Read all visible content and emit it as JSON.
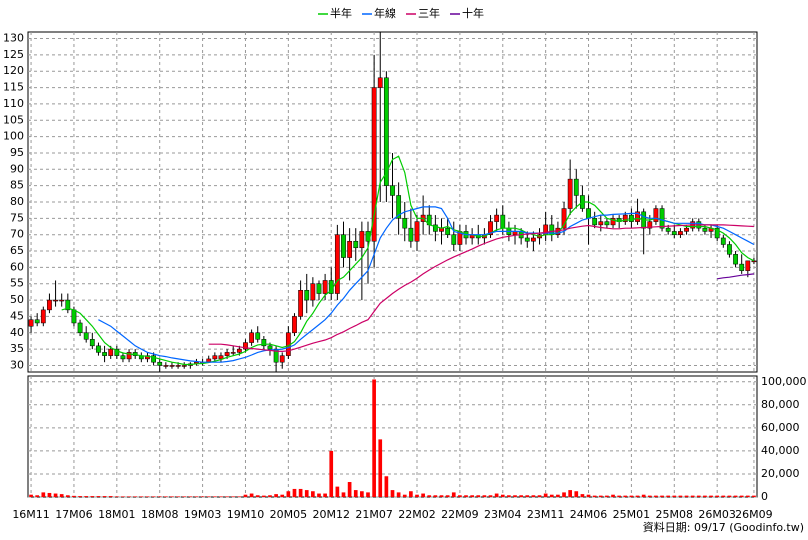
{
  "chart_data": {
    "type": "candlestick",
    "footer": "資料日期: 09/17 (Goodinfo.tw)",
    "categories": [
      "16M11",
      null,
      null,
      null,
      null,
      null,
      null,
      "17M06",
      null,
      null,
      null,
      null,
      null,
      null,
      "18M01",
      null,
      null,
      null,
      null,
      null,
      null,
      "18M08",
      null,
      null,
      null,
      null,
      null,
      null,
      "19M03",
      null,
      null,
      null,
      null,
      null,
      null,
      "19M10",
      null,
      null,
      null,
      null,
      null,
      null,
      "20M05",
      null,
      null,
      null,
      null,
      null,
      null,
      "20M12",
      null,
      null,
      null,
      null,
      null,
      null,
      "21M07",
      null,
      null,
      null,
      null,
      null,
      null,
      "22M02",
      null,
      null,
      null,
      null,
      null,
      null,
      "22M09",
      null,
      null,
      null,
      null,
      null,
      null,
      "23M04",
      null,
      null,
      null,
      null,
      null,
      null,
      "23M11",
      null,
      null,
      null,
      null,
      null,
      null,
      "24M06",
      null,
      null,
      null,
      null,
      null,
      null,
      "25M01",
      null,
      null,
      null,
      null,
      null,
      null,
      "25M08",
      null,
      null,
      null,
      null,
      null,
      null,
      "26M03",
      null,
      null,
      null,
      null,
      null,
      "26M09"
    ],
    "up_color": "#ff0000",
    "down_color": "#00cc00",
    "candles": {
      "open": [
        42,
        44,
        43,
        47,
        50,
        50,
        50,
        47,
        43,
        40,
        38,
        36,
        34,
        33,
        35,
        33,
        32,
        34,
        33,
        32,
        33,
        31,
        30,
        30,
        30,
        30,
        30,
        30.5,
        31,
        31,
        32,
        32,
        33,
        34,
        34,
        35,
        37,
        40,
        38,
        36,
        35,
        31,
        33,
        40,
        45,
        53,
        50,
        55,
        52,
        56,
        52,
        70,
        63,
        68,
        66,
        71,
        68,
        115,
        118,
        85,
        82,
        75,
        72,
        68,
        74,
        76,
        73,
        71,
        72,
        70,
        67,
        71,
        69,
        70,
        69,
        70,
        74,
        76,
        72,
        70,
        71,
        69,
        68,
        69,
        70,
        73,
        70,
        72,
        78,
        87,
        82,
        78,
        75,
        73,
        74,
        73,
        75,
        74,
        76,
        74,
        77,
        72,
        74,
        78,
        72,
        71,
        70,
        71,
        72,
        74,
        72,
        71,
        72,
        69,
        67,
        64,
        61,
        59,
        62
      ],
      "high": [
        45,
        46,
        48,
        52,
        56,
        52,
        52,
        48,
        44,
        42,
        40,
        37,
        36,
        36,
        36,
        34,
        35,
        35,
        34,
        34,
        34,
        32,
        31,
        31,
        31,
        31,
        31,
        32,
        32,
        33,
        34,
        34,
        35,
        36,
        36,
        38,
        41,
        42,
        39,
        37,
        36,
        34,
        42,
        46,
        56,
        58,
        57,
        56,
        58,
        60,
        73,
        74,
        72,
        72,
        74,
        74,
        125,
        132,
        120,
        95,
        86,
        80,
        78,
        76,
        82,
        79,
        76,
        75,
        75,
        74,
        73,
        73,
        72,
        73,
        72,
        76,
        78,
        79,
        74,
        73,
        72,
        71,
        71,
        72,
        77,
        76,
        74,
        80,
        93,
        90,
        85,
        82,
        77,
        76,
        75,
        76,
        76,
        77,
        78,
        81,
        78,
        76,
        79,
        79,
        73,
        73,
        72,
        73,
        75,
        75,
        73,
        73,
        73,
        70,
        68,
        65,
        64,
        62,
        63
      ],
      "low": [
        40,
        42,
        42,
        46,
        48,
        48,
        46,
        42,
        39,
        37,
        35,
        33,
        31,
        32,
        32,
        31,
        31,
        32,
        31,
        31,
        30,
        28,
        29,
        29,
        29,
        29,
        29,
        30,
        30,
        31,
        31,
        31,
        32,
        33,
        33,
        34,
        36,
        37,
        35,
        33,
        28,
        29,
        32,
        39,
        44,
        46,
        48,
        50,
        50,
        50,
        50,
        60,
        56,
        62,
        50,
        55,
        60,
        80,
        80,
        75,
        70,
        68,
        66,
        65,
        70,
        70,
        68,
        67,
        69,
        65,
        65,
        67,
        67,
        67,
        67,
        69,
        71,
        70,
        68,
        67,
        67,
        66,
        65,
        67,
        68,
        68,
        69,
        70,
        76,
        78,
        77,
        67,
        72,
        71,
        72,
        72,
        72,
        73,
        72,
        73,
        64,
        70,
        73,
        71,
        70,
        69,
        69,
        70,
        71,
        71,
        70,
        69,
        68,
        66,
        63,
        60,
        58,
        57,
        61
      ],
      "close": [
        44,
        43,
        47,
        50,
        50,
        50,
        47,
        43,
        40,
        38,
        36,
        34,
        33,
        35,
        33,
        32,
        34,
        33,
        32,
        33,
        31,
        30,
        30,
        30,
        30,
        30,
        30.5,
        31,
        31,
        32,
        33,
        33,
        34,
        34,
        35,
        37,
        40,
        38,
        36,
        35,
        31,
        33,
        40,
        45,
        53,
        50,
        55,
        52,
        56,
        52,
        70,
        63,
        68,
        66,
        71,
        68,
        115,
        118,
        85,
        82,
        75,
        72,
        68,
        74,
        76,
        73,
        71,
        72,
        70,
        67,
        71,
        69,
        70,
        69,
        70,
        74,
        76,
        72,
        70,
        71,
        69,
        68,
        69,
        70,
        73,
        70,
        72,
        78,
        87,
        82,
        78,
        75,
        73,
        74,
        73,
        75,
        74,
        76,
        74,
        77,
        72,
        74,
        78,
        72,
        71,
        70,
        71,
        72,
        74,
        72,
        71,
        72,
        69,
        67,
        64,
        61,
        59,
        62,
        62
      ]
    },
    "series": [
      {
        "name": "半年",
        "color": "#00cc00",
        "values": [
          null,
          null,
          null,
          null,
          null,
          47,
          47.5,
          47,
          46,
          44,
          42,
          39.5,
          37,
          35.5,
          34.5,
          33.8,
          33.5,
          33.3,
          33,
          32.8,
          32.5,
          32,
          31.5,
          31,
          30.7,
          30.3,
          30.3,
          30.5,
          30.6,
          30.9,
          31.3,
          31.8,
          32.5,
          33,
          33.5,
          34.3,
          35.5,
          36.3,
          36.5,
          36.5,
          36,
          35.5,
          36,
          37.3,
          40,
          43.5,
          46,
          49,
          51.5,
          53,
          56,
          57,
          59,
          61,
          63,
          66,
          76,
          86,
          89,
          93,
          94,
          89,
          79,
          75,
          75,
          73,
          72.5,
          72,
          72.5,
          71.5,
          71,
          70,
          70,
          69.5,
          69.5,
          70.5,
          71.5,
          72,
          72,
          72,
          71.5,
          70.5,
          70,
          69.5,
          70,
          70,
          70.5,
          73,
          76.5,
          78.5,
          80,
          80,
          79,
          77,
          75,
          74.5,
          74,
          74.5,
          74.5,
          75,
          74.5,
          74.5,
          75,
          74.5,
          74,
          73.5,
          73,
          72.5,
          72.5,
          72.5,
          72.5,
          72,
          71.5,
          70.5,
          69,
          67,
          64.5,
          63,
          62
        ]
      },
      {
        "name": "年線",
        "color": "#0066ff",
        "values": [
          null,
          null,
          null,
          null,
          null,
          null,
          null,
          null,
          null,
          null,
          null,
          44,
          43,
          42,
          40.5,
          39,
          37.5,
          36,
          35,
          34,
          33.5,
          33,
          32.7,
          32.3,
          32,
          31.7,
          31.4,
          31.2,
          31,
          31,
          31,
          31,
          31.2,
          31.5,
          32,
          32.5,
          33.2,
          34,
          34.5,
          34.8,
          34.8,
          35,
          35.5,
          36.3,
          38,
          39.5,
          41,
          42.5,
          44,
          46,
          48.5,
          50.5,
          53,
          55,
          57,
          59,
          64,
          69,
          72,
          74.5,
          76,
          77,
          77.5,
          78,
          78.5,
          78.5,
          78.5,
          78,
          75,
          71,
          70.5,
          70,
          70,
          70,
          70,
          70.5,
          71,
          71,
          71,
          71,
          71,
          70.5,
          70.5,
          70.5,
          70.5,
          70.5,
          70.5,
          71,
          72.5,
          73.5,
          74.5,
          75,
          75.5,
          76,
          76,
          76.2,
          76.3,
          76.4,
          76.5,
          76.5,
          75.5,
          75,
          75,
          74.5,
          74,
          73.5,
          73.5,
          73.5,
          73.5,
          73.5,
          73,
          73,
          72.5,
          72,
          71,
          70,
          69,
          68,
          67
        ]
      },
      {
        "name": "三年",
        "color": "#cc0066",
        "values": [
          null,
          null,
          null,
          null,
          null,
          null,
          null,
          null,
          null,
          null,
          null,
          null,
          null,
          null,
          null,
          null,
          null,
          null,
          null,
          null,
          null,
          null,
          null,
          null,
          null,
          null,
          null,
          null,
          null,
          36.5,
          36.5,
          36.5,
          36.3,
          36,
          35.7,
          35.4,
          35.2,
          35,
          34.8,
          34.6,
          34.4,
          34.3,
          34.5,
          35,
          35.6,
          36.2,
          36.8,
          37.3,
          37.8,
          38.5,
          39.5,
          40.3,
          41.3,
          42.2,
          43.2,
          44,
          46.5,
          49,
          50.5,
          52,
          53.3,
          54.5,
          55.5,
          56.7,
          58,
          59.2,
          60.3,
          61.3,
          62.3,
          63.2,
          64,
          64.8,
          65.6,
          66.5,
          67.3,
          68,
          68.7,
          69.2,
          69.5,
          69.8,
          70,
          70.2,
          70.3,
          70.5,
          70.7,
          71,
          71.2,
          71.5,
          72,
          72.3,
          72.6,
          72.8,
          72.5,
          72.2,
          72,
          71.8,
          71.8,
          72,
          72,
          72.1,
          72.2,
          72.3,
          72.4,
          72.5,
          72.6,
          72.7,
          72.8,
          72.9,
          73,
          73,
          73,
          73,
          73,
          73,
          72.9,
          72.8,
          72.7,
          72.6,
          72.5
        ]
      },
      {
        "name": "十年",
        "color": "#660099",
        "values": [
          null,
          null,
          null,
          null,
          null,
          null,
          null,
          null,
          null,
          null,
          null,
          null,
          null,
          null,
          null,
          null,
          null,
          null,
          null,
          null,
          null,
          null,
          null,
          null,
          null,
          null,
          null,
          null,
          null,
          null,
          null,
          null,
          null,
          null,
          null,
          null,
          null,
          null,
          null,
          null,
          null,
          null,
          null,
          null,
          null,
          null,
          null,
          null,
          null,
          null,
          null,
          null,
          null,
          null,
          null,
          null,
          null,
          null,
          null,
          null,
          null,
          null,
          null,
          null,
          null,
          null,
          null,
          null,
          null,
          null,
          null,
          null,
          null,
          null,
          null,
          null,
          null,
          null,
          null,
          null,
          null,
          null,
          null,
          null,
          null,
          null,
          null,
          null,
          null,
          null,
          null,
          null,
          null,
          null,
          null,
          null,
          null,
          null,
          null,
          null,
          null,
          null,
          null,
          null,
          null,
          null,
          null,
          null,
          null,
          null,
          null,
          null,
          56.5,
          56.8,
          57,
          57.3,
          57.6,
          57.8,
          58
        ]
      }
    ],
    "ylim": [
      28,
      132
    ],
    "yticks": [
      30,
      35,
      40,
      45,
      50,
      55,
      60,
      65,
      70,
      75,
      80,
      85,
      90,
      95,
      100,
      105,
      110,
      115,
      120,
      125,
      130
    ],
    "grid": true,
    "volume": {
      "color": "#ff0000",
      "values": [
        2000,
        1500,
        4000,
        3500,
        3000,
        2500,
        1500,
        1000,
        800,
        800,
        800,
        800,
        800,
        800,
        500,
        500,
        500,
        500,
        500,
        500,
        500,
        500,
        500,
        500,
        500,
        500,
        500,
        500,
        500,
        500,
        500,
        500,
        500,
        500,
        500,
        2000,
        3000,
        1500,
        1200,
        1500,
        2500,
        2000,
        5000,
        7000,
        7000,
        6000,
        5000,
        3000,
        3000,
        40000,
        9000,
        4000,
        13000,
        6000,
        5000,
        4000,
        102000,
        50000,
        18000,
        6000,
        4000,
        2000,
        5000,
        2000,
        3000,
        1500,
        1500,
        1500,
        1500,
        4000,
        1500,
        1500,
        1500,
        1500,
        1500,
        1500,
        3000,
        2000,
        1500,
        1500,
        1500,
        1500,
        1500,
        1500,
        3000,
        2000,
        2000,
        4000,
        6000,
        5000,
        2500,
        2000,
        1200,
        1200,
        1200,
        2000,
        1200,
        1200,
        1200,
        1200,
        2000,
        1200,
        1200,
        1200,
        1200,
        1200,
        1200,
        1200,
        1200,
        1200,
        1200,
        1200,
        1200,
        1200,
        1200,
        1200,
        1200,
        1200,
        1200
      ],
      "ylim": [
        0,
        105000
      ],
      "yticks": [
        0,
        {
          "value": 20000,
          "label": "20,000"
        },
        {
          "value": 40000,
          "label": "40,000"
        },
        {
          "value": 60000,
          "label": "60,000"
        },
        {
          "value": 80000,
          "label": "80,000"
        },
        {
          "value": 100000,
          "label": "100,000"
        }
      ]
    }
  }
}
